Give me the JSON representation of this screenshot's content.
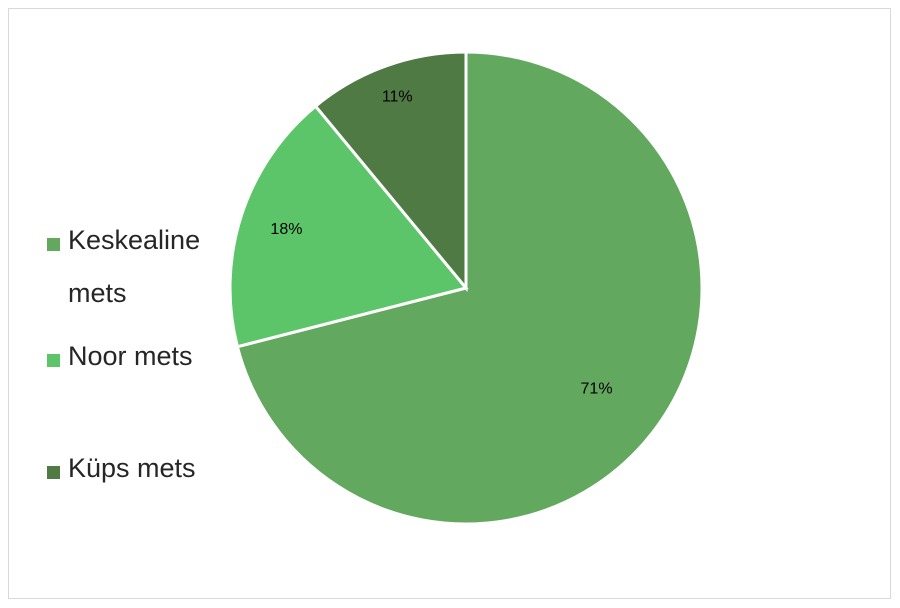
{
  "chart_data": {
    "type": "pie",
    "title": "",
    "categories": [
      "Keskealine mets",
      "Noor mets",
      "Küps mets"
    ],
    "values": [
      71,
      18,
      11
    ],
    "labels": [
      "71%",
      "18%",
      "11%"
    ],
    "colors": [
      "#63a85f",
      "#5dc569",
      "#4f7a44"
    ],
    "legend_position": "left",
    "start_angle_deg": 0,
    "direction": "clockwise"
  }
}
